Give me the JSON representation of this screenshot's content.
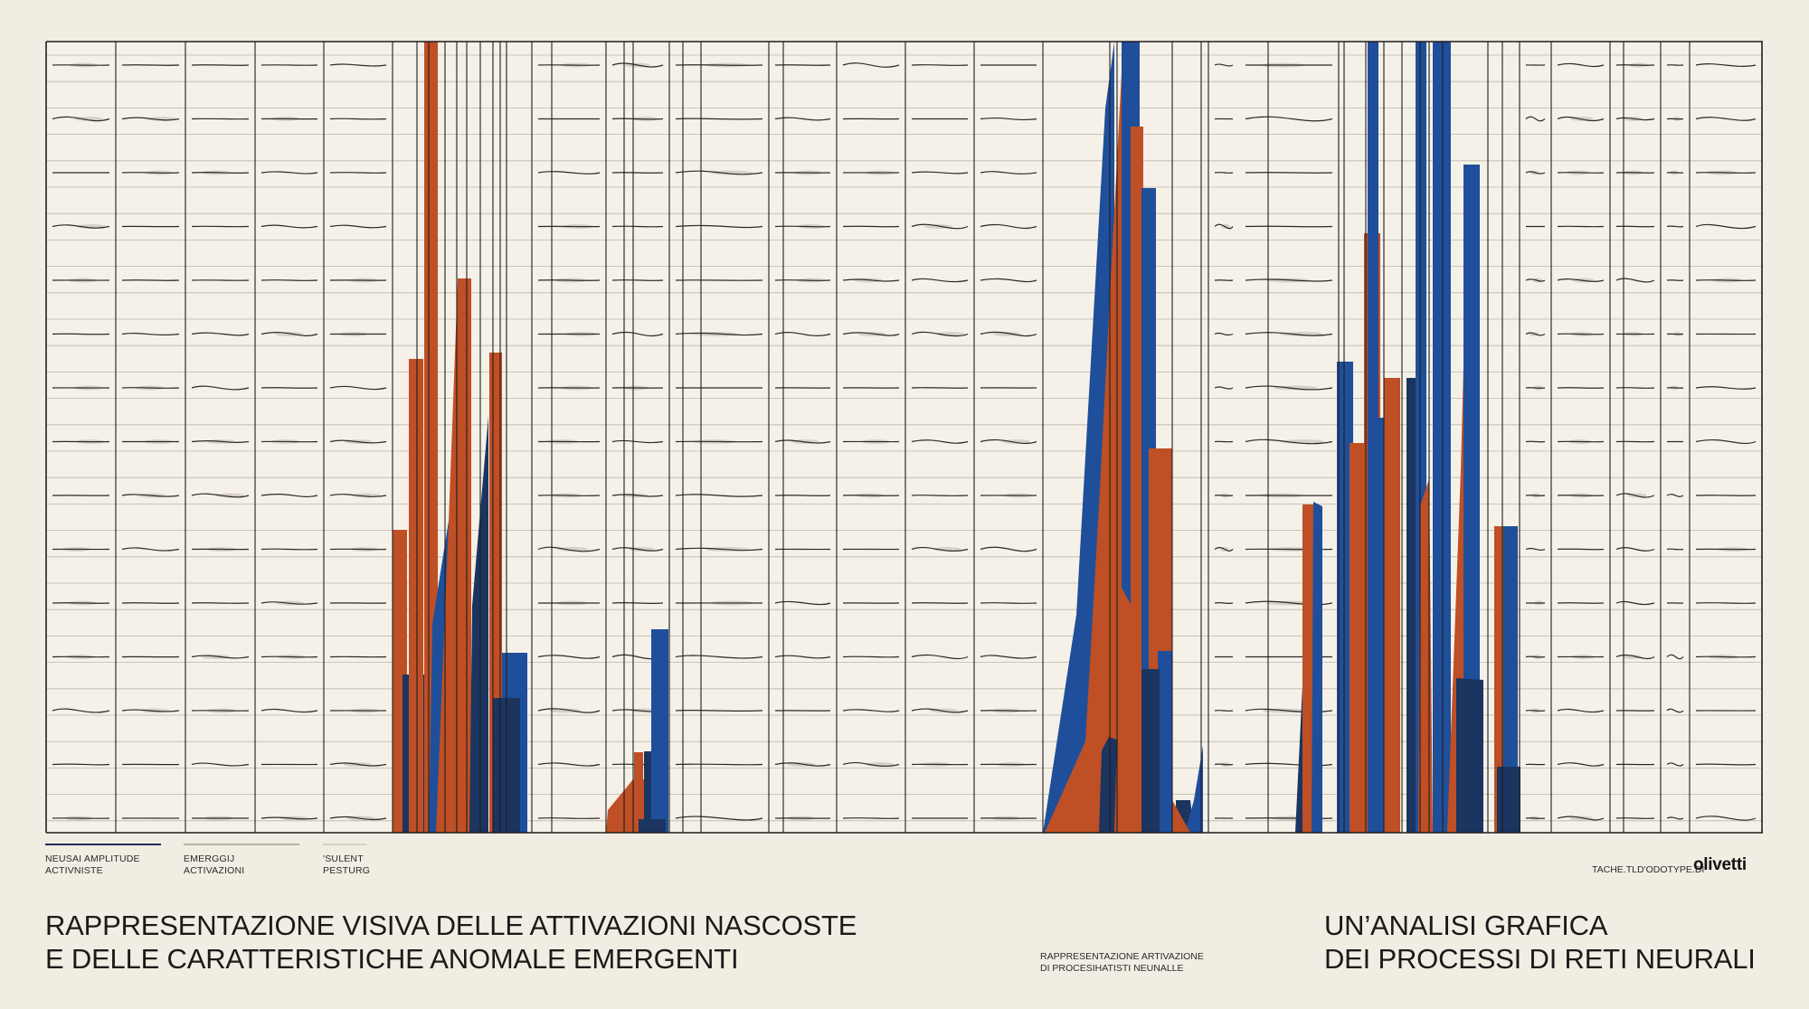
{
  "colors": {
    "background": "#f2ede2",
    "grid_line": "#1e1e1e",
    "rule_line": "#bdb6aa",
    "orange": "#bf4f25",
    "blue": "#1f4f9a",
    "navy": "#1b3560"
  },
  "legend": [
    {
      "line1": "NEUSAI AMPLITUDE",
      "line2": "ACTIVNISTE",
      "rule_color": "#1b2f55"
    },
    {
      "line1": "EMERGGIJ",
      "line2": "ACTIVAZIONI",
      "rule_color": "#b8b2a8"
    },
    {
      "line1": "'SULENT",
      "line2": "PESTURG",
      "rule_color": "#d6d1c6"
    }
  ],
  "brand": {
    "note": "TACHE.TLD'ODOTYPE.DI",
    "name": "olivetti"
  },
  "title_left": {
    "line1": "RAPPRESENTAZIONE VISIVA DELLE ATTIVAZIONI NASCOSTE",
    "line2": "E DELLE CARATTERISTICHE ANOMALE EMERGENTI"
  },
  "mid_note": {
    "line1": "RAPPRESENTAZIONE ARTIVAZIONE",
    "line2": "DI PROCESIHATISTI NEUNALLE"
  },
  "title_right": {
    "line1": "UN’ANALISI GRAFICA",
    "line2": "DEI PROCESSI DI RETI NEURALI"
  }
}
